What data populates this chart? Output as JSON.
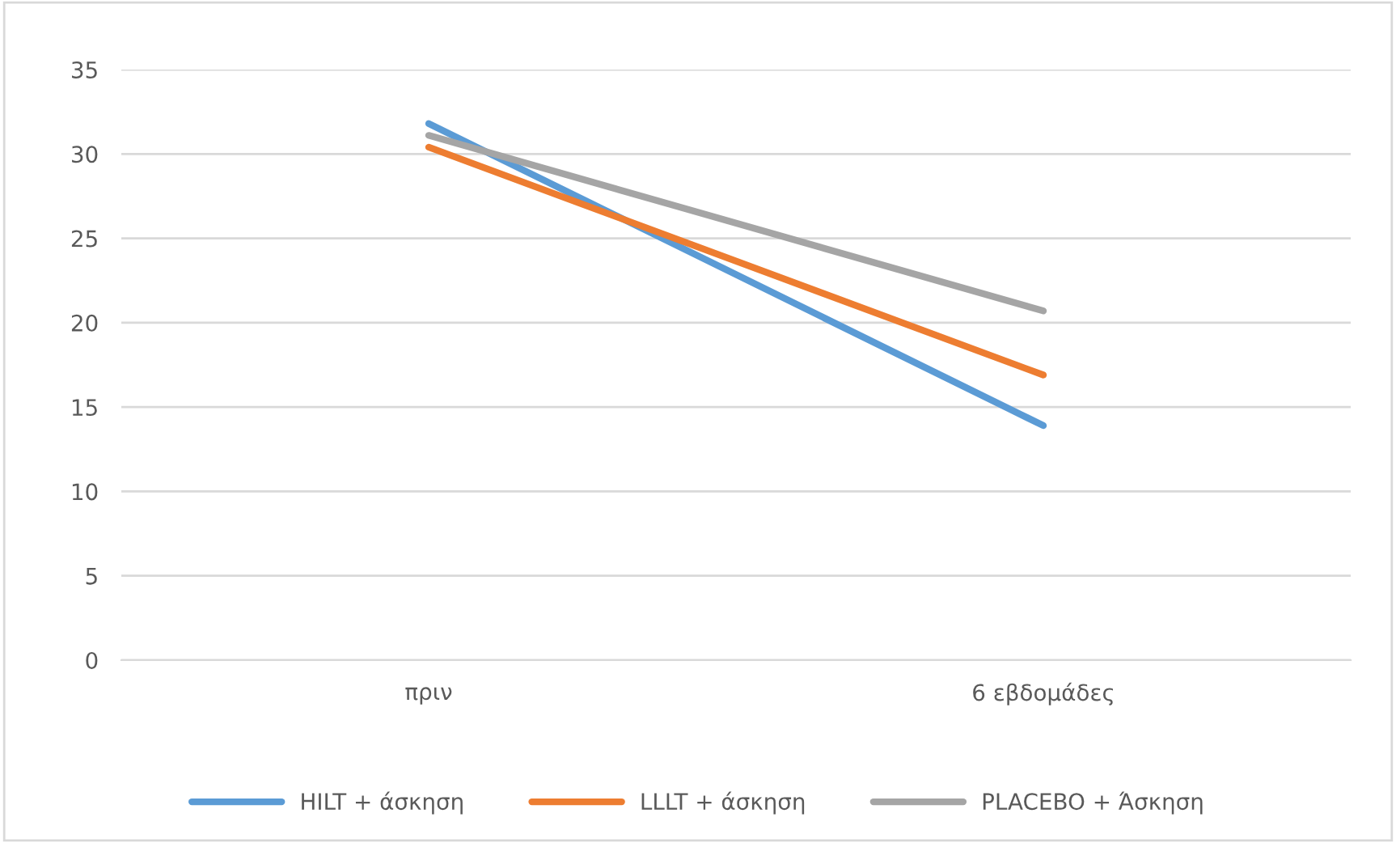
{
  "chart_data": {
    "type": "line",
    "categories": [
      "πριν",
      "6 εβδομάδες"
    ],
    "series": [
      {
        "name": "HILT + άσκηση",
        "color": "#5b9bd5",
        "values": [
          31.8,
          13.9
        ]
      },
      {
        "name": "LLLT + άσκηση",
        "color": "#ed7d31",
        "values": [
          30.4,
          16.9
        ]
      },
      {
        "name": "PLACEBO + Άσκηση",
        "color": "#a5a5a5",
        "values": [
          31.1,
          20.7
        ]
      }
    ],
    "ylim": [
      0,
      35
    ],
    "yticks": [
      0,
      5,
      10,
      15,
      20,
      25,
      30,
      35
    ],
    "grid": "y",
    "legend": "bottom",
    "marker": "none",
    "line_style": "solid"
  }
}
